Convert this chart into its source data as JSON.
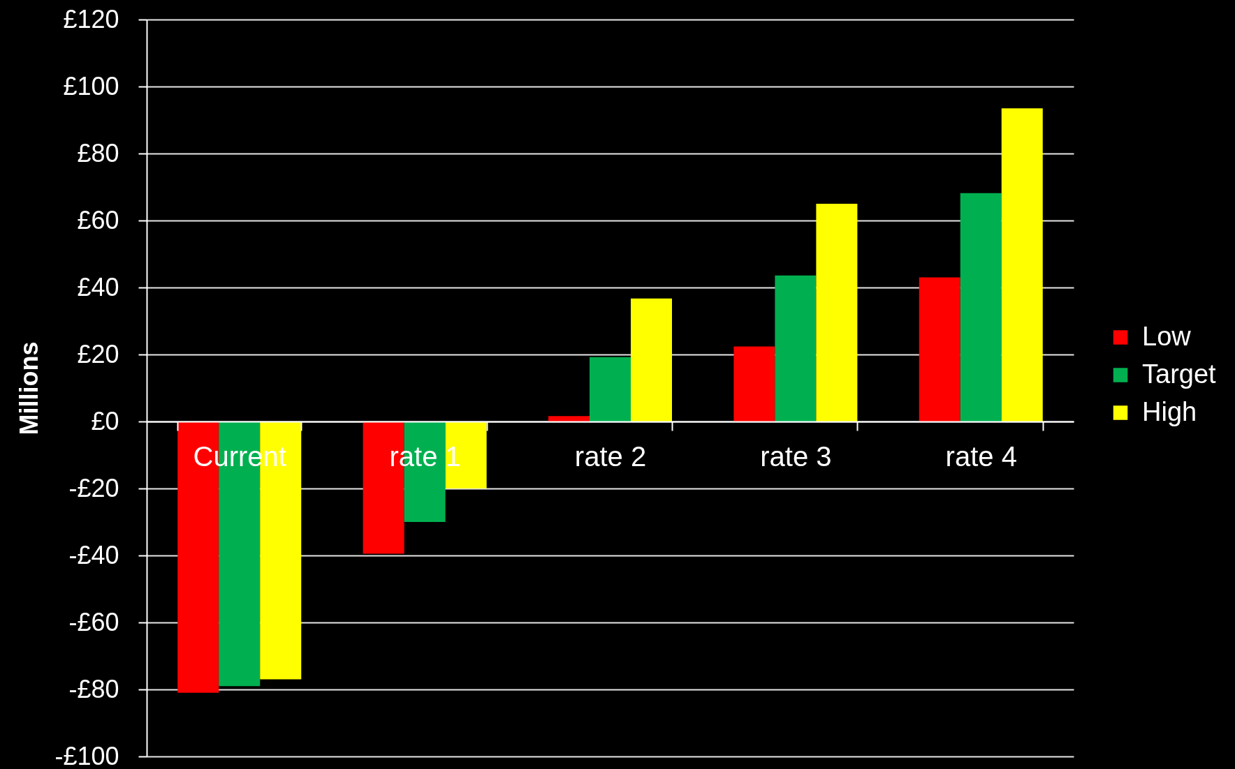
{
  "chart_data": {
    "type": "bar",
    "ylabel": "Millions",
    "categories": [
      "Current",
      "rate 1",
      "rate 2",
      "rate 3",
      "rate 4"
    ],
    "series": [
      {
        "name": "Low",
        "color": "#ff0000",
        "values": [
          -81,
          -39.5,
          1.6,
          22.4,
          43
        ]
      },
      {
        "name": "Target",
        "color": "#00b050",
        "values": [
          -79,
          -30,
          19.2,
          43.6,
          68.2
        ]
      },
      {
        "name": "High",
        "color": "#ffff00",
        "values": [
          -77,
          -20,
          36.7,
          65,
          93.5
        ]
      }
    ],
    "ylim": [
      -100,
      120
    ],
    "yticks": [
      {
        "value": -100,
        "label": "-£100"
      },
      {
        "value": -80,
        "label": "-£80"
      },
      {
        "value": -60,
        "label": "-£60"
      },
      {
        "value": -40,
        "label": "-£40"
      },
      {
        "value": -20,
        "label": "-£20"
      },
      {
        "value": 0,
        "label": "£0"
      },
      {
        "value": 20,
        "label": "£20"
      },
      {
        "value": 40,
        "label": "£40"
      },
      {
        "value": 60,
        "label": "£60"
      },
      {
        "value": 80,
        "label": "£80"
      },
      {
        "value": 100,
        "label": "£100"
      },
      {
        "value": 120,
        "label": "£120"
      }
    ],
    "grid": "y",
    "legend": "right"
  }
}
